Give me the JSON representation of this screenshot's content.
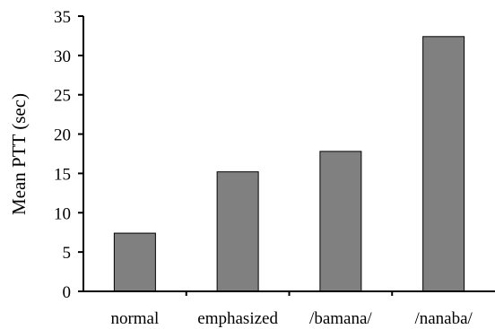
{
  "chart_data": {
    "type": "bar",
    "categories": [
      "normal",
      "emphasized",
      "/bamana/",
      "/nanaba/"
    ],
    "values": [
      7.4,
      15.2,
      17.8,
      32.4
    ],
    "title": "",
    "xlabel": "",
    "ylabel": "Mean PTT (sec)",
    "ylim": [
      0,
      35
    ],
    "yticks": [
      0,
      5,
      10,
      15,
      20,
      25,
      30,
      35
    ],
    "grid": false,
    "legend": "none",
    "bar_color": "#808080",
    "bar_edge_color": "#000000"
  }
}
